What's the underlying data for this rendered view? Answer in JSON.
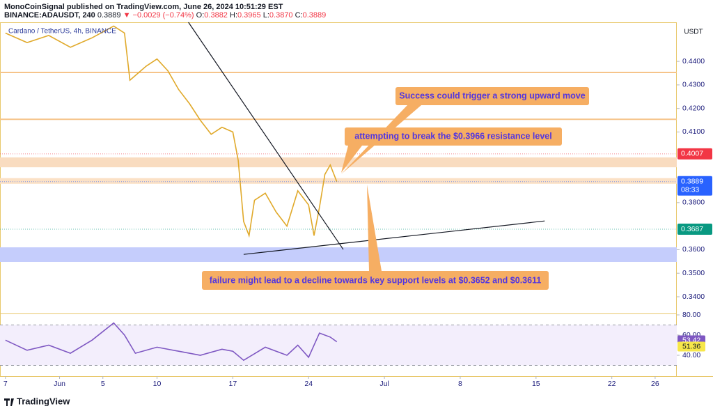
{
  "header": {
    "publisher": "MonoCoinSignal published on TradingView.com, June 26, 2024 10:51:29 EST",
    "symbol": "BINANCE:ADAUSDT, 240",
    "price": "0.3889",
    "change": "▼ −0.0029 (−0.74%)",
    "ohlc": [
      [
        "O:",
        "0.3882"
      ],
      [
        "H:",
        "0.3965"
      ],
      [
        "L:",
        "0.3870"
      ],
      [
        "C:",
        "0.3889"
      ]
    ]
  },
  "footer": {
    "brand": "TradingView"
  },
  "chart_data": [
    {
      "type": "line",
      "y_axis_title": "USDT",
      "x": [
        -4,
        -2,
        0,
        2,
        4,
        6,
        7,
        7.5,
        9,
        10,
        11,
        12,
        13,
        14,
        15,
        16,
        17,
        17.5,
        18,
        18.5,
        19,
        20,
        21,
        22,
        23,
        24,
        24.5,
        25,
        25.5,
        26,
        26.6
      ],
      "series": [
        {
          "name": "Cardano / TetherUS, 4h, BINANCE",
          "color": "#e0a92a",
          "values": [
            0.452,
            0.448,
            0.451,
            0.446,
            0.45,
            0.455,
            0.452,
            0.432,
            0.438,
            0.441,
            0.436,
            0.428,
            0.422,
            0.415,
            0.409,
            0.412,
            0.41,
            0.398,
            0.372,
            0.366,
            0.381,
            0.384,
            0.376,
            0.37,
            0.385,
            0.379,
            0.366,
            0.378,
            0.392,
            0.396,
            0.3889
          ]
        }
      ],
      "xlim": [
        -4.5,
        58
      ],
      "xticks": [
        {
          "value": -4,
          "label": "7"
        },
        {
          "value": 1,
          "label": "Jun"
        },
        5,
        10,
        17,
        24,
        {
          "value": 31,
          "label": "Jul"
        },
        {
          "value": 38,
          "label": "8"
        },
        {
          "value": 45,
          "label": "15"
        },
        {
          "value": 52,
          "label": "22"
        },
        {
          "value": 56,
          "label": "26"
        }
      ],
      "ylim": [
        0.3329,
        0.4566
      ],
      "yticks": [
        {
          "value": 0.34,
          "label": "0.3400"
        },
        {
          "value": 0.35,
          "label": "0.3500"
        },
        {
          "value": 0.36,
          "label": "0.3600"
        },
        {
          "value": 0.38,
          "label": "0.3800"
        },
        {
          "value": 0.41,
          "label": "0.4100"
        },
        {
          "value": 0.42,
          "label": "0.4200"
        },
        {
          "value": 0.43,
          "label": "0.4300"
        },
        {
          "value": 0.44,
          "label": "0.4400"
        }
      ],
      "grid": false,
      "zones": [
        {
          "from": 0.395,
          "to": 0.3992,
          "color": "#f9dcc0"
        },
        {
          "from": 0.388,
          "to": 0.3904,
          "color": "#fbe1c6"
        },
        {
          "from": 0.3548,
          "to": 0.361,
          "color": "#c5cdfc"
        }
      ],
      "levels": [
        0.4353,
        0.4154
      ],
      "level_color": "#f6c48a",
      "trendlines": [
        {
          "x": [
            12.9,
            27.2
          ],
          "y": [
            0.4566,
            0.3601
          ]
        },
        {
          "x": [
            18,
            45.8
          ],
          "y": [
            0.358,
            0.3722
          ]
        }
      ],
      "price_labels": [
        {
          "value": 0.4007,
          "color": "#f23645"
        },
        {
          "value": 0.3889,
          "color": "#2962ff",
          "countdown": "08:33"
        },
        {
          "value": 0.3687,
          "color": "#089981"
        }
      ],
      "annotations": [
        "Success could trigger a strong upward move",
        "attempting to break the $0.3966 resistance level",
        "failure might lead to a decline towards key support levels at $0.3652 and $0.3611"
      ]
    },
    {
      "type": "line",
      "x": [
        -4,
        -2,
        0,
        2,
        4,
        6,
        7,
        8,
        10,
        12,
        14,
        16,
        17,
        18,
        20,
        22,
        23,
        24,
        25,
        26,
        26.6
      ],
      "values": [
        55,
        45,
        50,
        42,
        55,
        72,
        60,
        42,
        48,
        44,
        40,
        46,
        44,
        35,
        48,
        40,
        50,
        38,
        62,
        58,
        53.42
      ],
      "color": "#7e57c2",
      "ylim": [
        19.3,
        81.4
      ],
      "yticks": [
        {
          "value": 80,
          "label": "80.00"
        },
        {
          "value": 60,
          "label": "60.00"
        },
        {
          "value": 40,
          "label": "40.00"
        }
      ],
      "band": [
        30,
        70
      ],
      "last_labels": [
        {
          "value": 53.42,
          "color": "#7e57c2"
        },
        {
          "value": 51.36,
          "color": "#f7e74a"
        }
      ]
    }
  ]
}
